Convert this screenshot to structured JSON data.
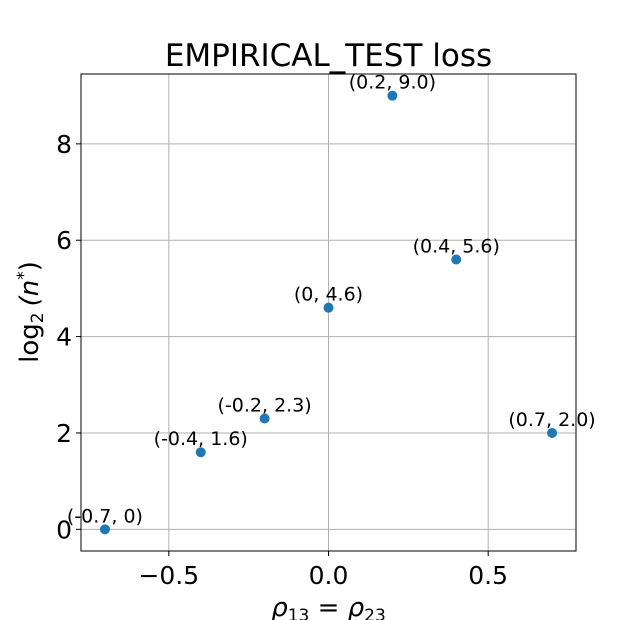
{
  "chart_data": {
    "type": "scatter",
    "title": "EMPIRICAL_TEST loss",
    "xlabel_parts": [
      "ρ",
      "13",
      " = ρ",
      "23"
    ],
    "ylabel_parts": [
      "log",
      "2",
      "(n",
      "*",
      ")"
    ],
    "xlim": [
      -0.775,
      0.775
    ],
    "ylim": [
      -0.45,
      9.45
    ],
    "xticks": [
      -0.5,
      0.0,
      0.5
    ],
    "xtick_labels": [
      "−0.5",
      "0.0",
      "0.5"
    ],
    "yticks": [
      0,
      2,
      4,
      6,
      8
    ],
    "ytick_labels": [
      "0",
      "2",
      "4",
      "6",
      "8"
    ],
    "grid": true,
    "marker_color": "#1f77b4",
    "points": [
      {
        "x": -0.7,
        "y": 0.0,
        "label": "(-0.7, 0)"
      },
      {
        "x": -0.4,
        "y": 1.6,
        "label": "(-0.4, 1.6)"
      },
      {
        "x": -0.2,
        "y": 2.3,
        "label": "(-0.2, 2.3)"
      },
      {
        "x": 0.0,
        "y": 4.6,
        "label": "(0, 4.6)"
      },
      {
        "x": 0.2,
        "y": 9.0,
        "label": "(0.2, 9.0)"
      },
      {
        "x": 0.4,
        "y": 5.6,
        "label": "(0.4, 5.6)"
      },
      {
        "x": 0.7,
        "y": 2.0,
        "label": "(0.7, 2.0)"
      }
    ]
  }
}
